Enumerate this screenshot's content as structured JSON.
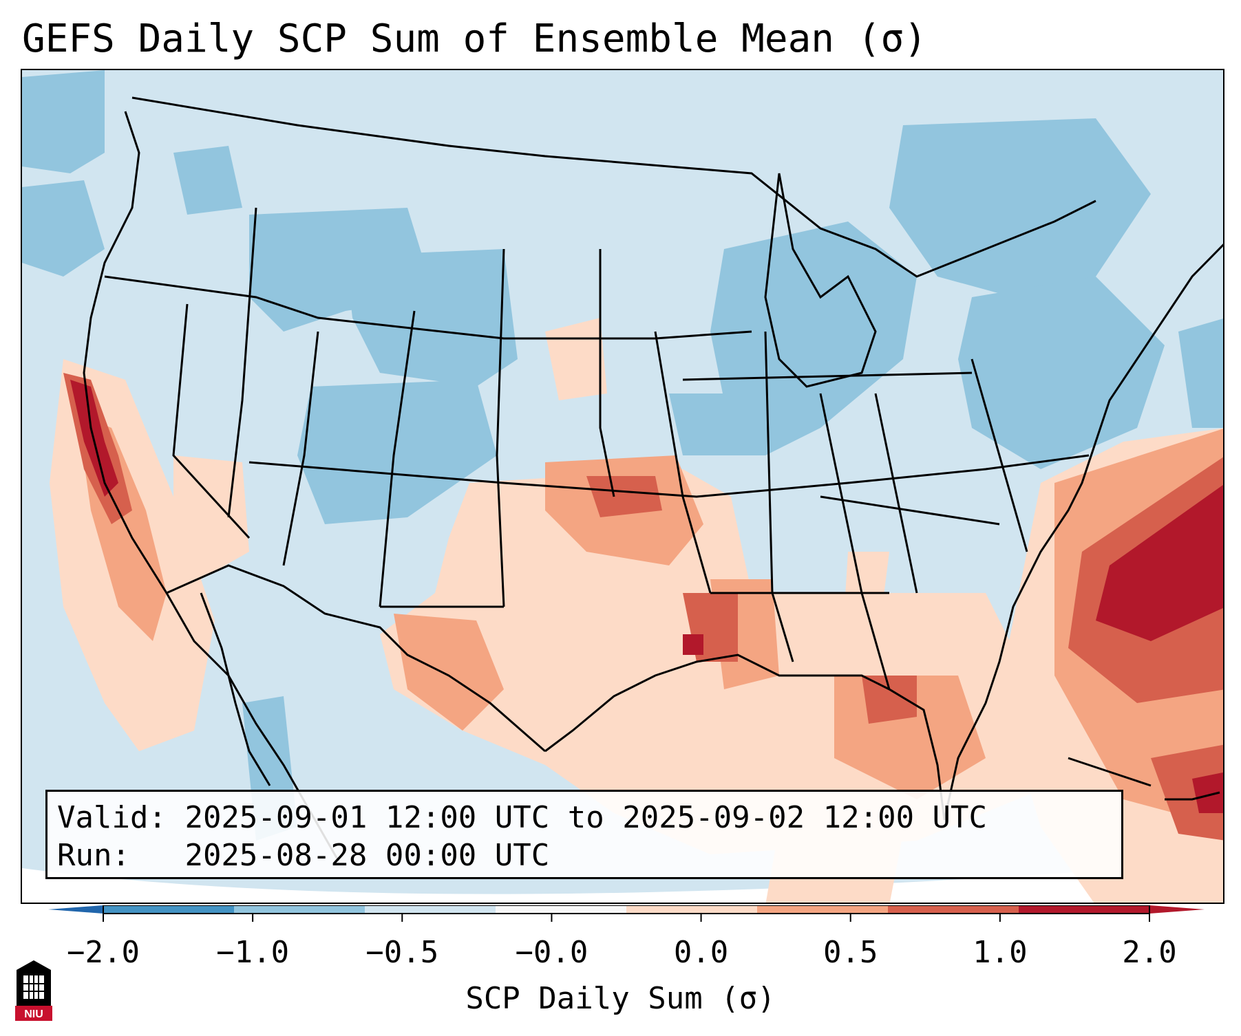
{
  "title": "GEFS Daily SCP Sum of Ensemble Mean (σ)",
  "info": {
    "valid_label": "Valid:",
    "valid_value": "2025-09-01 12:00 UTC to 2025-09-02 12:00 UTC",
    "run_label": "Run:",
    "run_value": "2025-08-28 00:00 UTC"
  },
  "colorbar": {
    "label": "SCP Daily Sum (σ)",
    "ticks": [
      "−2.0",
      "−1.0",
      "−0.5",
      "−0.0",
      "0.0",
      "0.5",
      "1.0",
      "2.0"
    ],
    "colors": [
      "#4393c3",
      "#92c5de",
      "#d1e5f0",
      "#f7f7f7",
      "#fddbc7",
      "#f4a582",
      "#d6604d",
      "#b2182b"
    ],
    "under_color": "#2166ac",
    "over_color": "#b2182b"
  },
  "logo": {
    "text": "NIU",
    "icon": "niu-logo-icon"
  }
}
